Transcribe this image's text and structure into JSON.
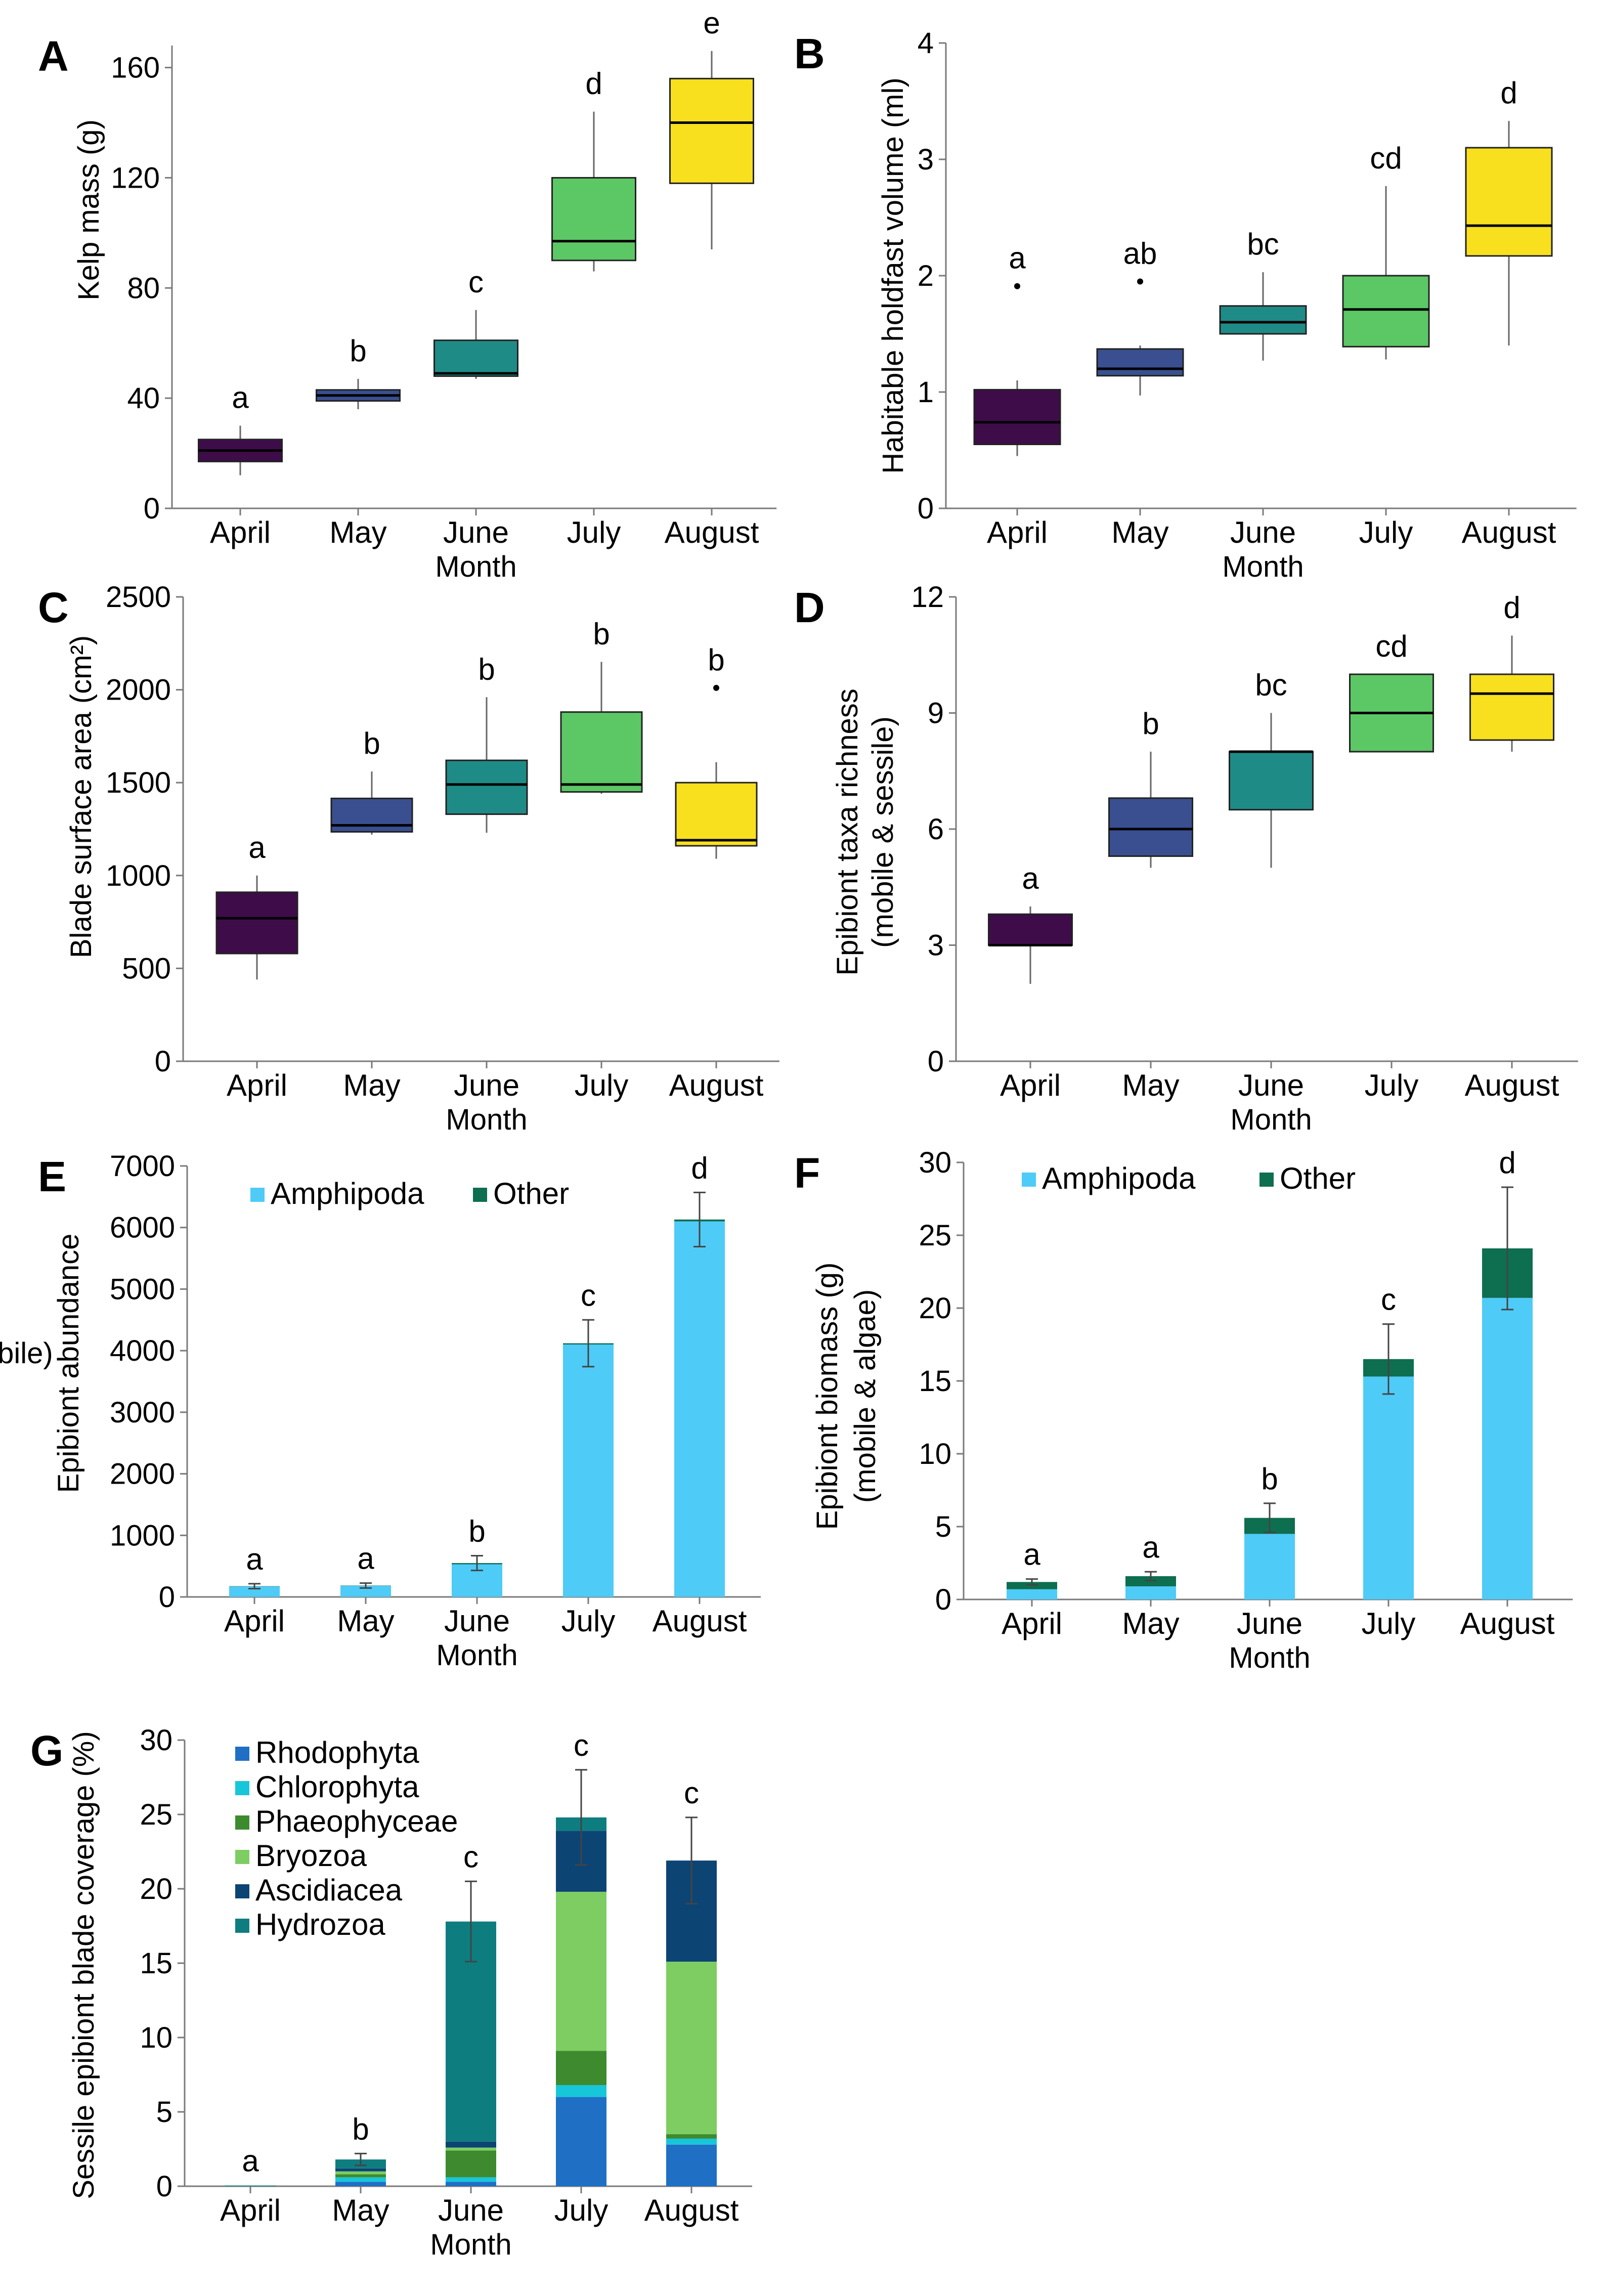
{
  "chart_data": [
    {
      "panel": "A",
      "type": "box",
      "title": "",
      "xlabel": "Month",
      "ylabel": "Kelp mass (g)",
      "categories": [
        "April",
        "May",
        "June",
        "July",
        "August"
      ],
      "yticks": [
        "0",
        "40",
        "80",
        "120",
        "160"
      ],
      "ylim": [
        0,
        168
      ],
      "colors": [
        "#3f0c4a",
        "#3a4f8f",
        "#1f8b87",
        "#5cc765",
        "#f8e01e"
      ],
      "boxes": [
        {
          "min": 12,
          "q1": 17,
          "median": 21,
          "q3": 25,
          "max": 30,
          "outliers": []
        },
        {
          "min": 36,
          "q1": 39,
          "median": 41,
          "q3": 43,
          "max": 47,
          "outliers": []
        },
        {
          "min": 47,
          "q1": 48,
          "median": 49,
          "q3": 61,
          "max": 72,
          "outliers": []
        },
        {
          "min": 86,
          "q1": 90,
          "median": 97,
          "q3": 120,
          "max": 144,
          "outliers": []
        },
        {
          "min": 94,
          "q1": 118,
          "median": 140,
          "q3": 156,
          "max": 166,
          "outliers": []
        }
      ],
      "letters": [
        "a",
        "b",
        "c",
        "d",
        "e"
      ]
    },
    {
      "panel": "B",
      "type": "box",
      "title": "",
      "xlabel": "Month",
      "ylabel": "Habitable holdfast volume (ml)",
      "categories": [
        "April",
        "May",
        "June",
        "July",
        "August"
      ],
      "yticks": [
        "0",
        "1",
        "2",
        "3",
        "4"
      ],
      "ylim": [
        0,
        4
      ],
      "colors": [
        "#3f0c4a",
        "#3a4f8f",
        "#1f8b87",
        "#5cc765",
        "#f8e01e"
      ],
      "boxes": [
        {
          "min": 0.45,
          "q1": 0.55,
          "median": 0.74,
          "q3": 1.02,
          "max": 1.1,
          "outliers": [
            1.91
          ]
        },
        {
          "min": 0.97,
          "q1": 1.14,
          "median": 1.2,
          "q3": 1.37,
          "max": 1.4,
          "outliers": [
            1.95
          ]
        },
        {
          "min": 1.27,
          "q1": 1.5,
          "median": 1.6,
          "q3": 1.74,
          "max": 2.03,
          "outliers": []
        },
        {
          "min": 1.28,
          "q1": 1.39,
          "median": 1.71,
          "q3": 2.0,
          "max": 2.77,
          "outliers": []
        },
        {
          "min": 1.4,
          "q1": 2.17,
          "median": 2.43,
          "q3": 3.1,
          "max": 3.33,
          "outliers": []
        }
      ],
      "letters": [
        "a",
        "ab",
        "bc",
        "cd",
        "d"
      ]
    },
    {
      "panel": "C",
      "type": "box",
      "title": "",
      "xlabel": "Month",
      "ylabel": "Blade surface area (cm²)",
      "categories": [
        "April",
        "May",
        "June",
        "July",
        "August"
      ],
      "yticks": [
        "0",
        "500",
        "1000",
        "1500",
        "2000",
        "2500"
      ],
      "ylim": [
        0,
        2500
      ],
      "colors": [
        "#3f0c4a",
        "#3a4f8f",
        "#1f8b87",
        "#5cc765",
        "#f8e01e"
      ],
      "boxes": [
        {
          "min": 440,
          "q1": 580,
          "median": 770,
          "q3": 910,
          "max": 1000,
          "outliers": []
        },
        {
          "min": 1220,
          "q1": 1235,
          "median": 1270,
          "q3": 1415,
          "max": 1560,
          "outliers": []
        },
        {
          "min": 1230,
          "q1": 1330,
          "median": 1490,
          "q3": 1620,
          "max": 1960,
          "outliers": []
        },
        {
          "min": 1440,
          "q1": 1450,
          "median": 1490,
          "q3": 1880,
          "max": 2150,
          "outliers": []
        },
        {
          "min": 1090,
          "q1": 1160,
          "median": 1190,
          "q3": 1500,
          "max": 1610,
          "outliers": [
            2010
          ]
        }
      ],
      "letters": [
        "a",
        "b",
        "b",
        "b",
        "b"
      ]
    },
    {
      "panel": "D",
      "type": "box",
      "title": "",
      "xlabel": "Month",
      "ylabel": "Epibiont taxa richness (mobile & sessile)",
      "categories": [
        "April",
        "May",
        "June",
        "July",
        "August"
      ],
      "yticks": [
        "0",
        "3",
        "6",
        "9",
        "12"
      ],
      "ylim": [
        0,
        12
      ],
      "colors": [
        "#3f0c4a",
        "#3a4f8f",
        "#1f8b87",
        "#5cc765",
        "#f8e01e"
      ],
      "boxes": [
        {
          "min": 2,
          "q1": 3,
          "median": 3,
          "q3": 3.8,
          "max": 4,
          "outliers": []
        },
        {
          "min": 5,
          "q1": 5.3,
          "median": 6,
          "q3": 6.8,
          "max": 8,
          "outliers": []
        },
        {
          "min": 5,
          "q1": 6.5,
          "median": 8,
          "q3": 8,
          "max": 9,
          "outliers": []
        },
        {
          "min": 8,
          "q1": 8,
          "median": 9,
          "q3": 10,
          "max": 10,
          "outliers": []
        },
        {
          "min": 8,
          "q1": 8.3,
          "median": 9.5,
          "q3": 10,
          "max": 11,
          "outliers": []
        }
      ],
      "letters": [
        "a",
        "b",
        "bc",
        "cd",
        "d"
      ]
    },
    {
      "panel": "E",
      "type": "stacked-bar",
      "title": "",
      "xlabel": "Month",
      "ylabel": "Epibiont abundance (mobile)",
      "categories": [
        "April",
        "May",
        "June",
        "July",
        "August"
      ],
      "yticks": [
        "0",
        "1000",
        "2000",
        "3000",
        "4000",
        "5000",
        "6000",
        "7000"
      ],
      "ylim": [
        0,
        7000
      ],
      "series": [
        {
          "name": "Amphipoda",
          "color": "#4ecbf7",
          "values": [
            170,
            180,
            530,
            4100,
            6100
          ]
        },
        {
          "name": "Other",
          "color": "#0d6e50",
          "values": [
            5,
            5,
            20,
            20,
            30
          ]
        }
      ],
      "errors": [
        40,
        40,
        120,
        380,
        440
      ],
      "letters": [
        "a",
        "a",
        "b",
        "c",
        "d"
      ]
    },
    {
      "panel": "F",
      "type": "stacked-bar",
      "title": "",
      "xlabel": "Month",
      "ylabel": "Epibiont biomass (g) (mobile & algae)",
      "categories": [
        "April",
        "May",
        "June",
        "July",
        "August"
      ],
      "yticks": [
        "0",
        "5",
        "10",
        "15",
        "20",
        "25",
        "30"
      ],
      "ylim": [
        0,
        30
      ],
      "series": [
        {
          "name": "Amphipoda",
          "color": "#4ecbf7",
          "values": [
            0.7,
            0.9,
            4.5,
            15.3,
            20.7
          ]
        },
        {
          "name": "Other",
          "color": "#0d6e50",
          "values": [
            0.5,
            0.7,
            1.1,
            1.2,
            3.4
          ]
        }
      ],
      "errors": [
        0.2,
        0.3,
        1.0,
        2.4,
        4.2
      ],
      "letters": [
        "a",
        "a",
        "b",
        "c",
        "d"
      ]
    },
    {
      "panel": "G",
      "type": "stacked-bar",
      "title": "",
      "xlabel": "Month",
      "ylabel": "Sessile epibiont blade coverage (%)",
      "categories": [
        "April",
        "May",
        "June",
        "July",
        "August"
      ],
      "yticks": [
        "0",
        "5",
        "10",
        "15",
        "20",
        "25",
        "30"
      ],
      "ylim": [
        0,
        30
      ],
      "series": [
        {
          "name": "Rhodophyta",
          "color": "#1f6fc5",
          "values": [
            0,
            0.3,
            0.3,
            6.0,
            2.8
          ]
        },
        {
          "name": "Chlorophyta",
          "color": "#17c6d9",
          "values": [
            0,
            0.3,
            0.3,
            0.8,
            0.4
          ]
        },
        {
          "name": "Phaeophyceae",
          "color": "#3e8a2e",
          "values": [
            0,
            0.2,
            1.8,
            2.3,
            0.3
          ]
        },
        {
          "name": "Bryozoa",
          "color": "#7dcd63",
          "values": [
            0,
            0.2,
            0.2,
            10.7,
            11.6
          ]
        },
        {
          "name": "Ascidiacea",
          "color": "#0c4474",
          "values": [
            0,
            0.2,
            0.4,
            4.1,
            6.8
          ]
        },
        {
          "name": "Hydrozoa",
          "color": "#0e7d80",
          "values": [
            0.05,
            0.6,
            14.8,
            0.9,
            0
          ]
        }
      ],
      "errors": [
        0,
        0.4,
        2.7,
        3.2,
        2.9
      ],
      "letters": [
        "a",
        "b",
        "c",
        "c",
        "c"
      ]
    }
  ]
}
